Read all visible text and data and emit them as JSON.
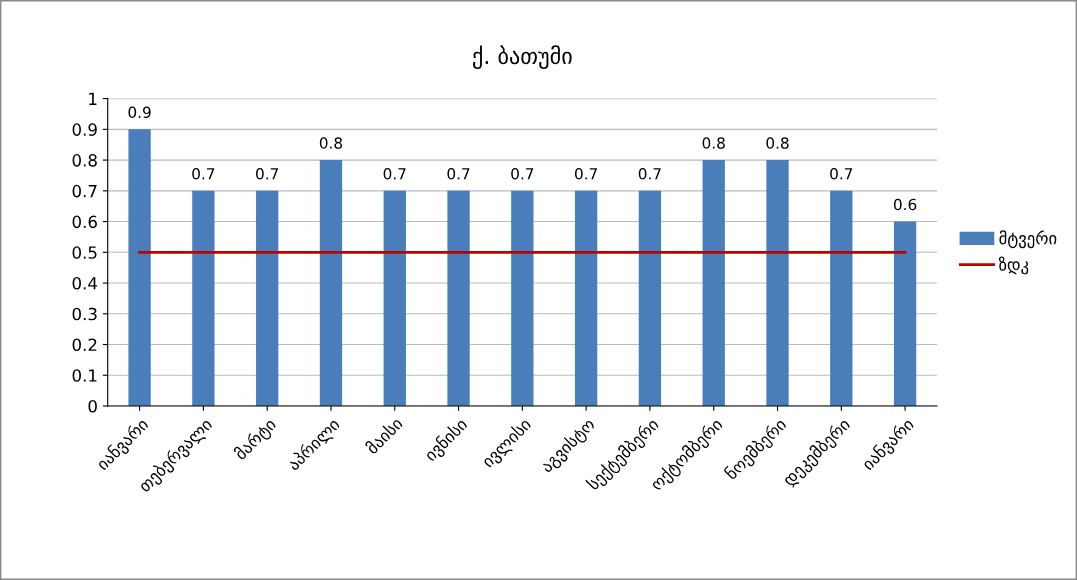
{
  "chart_data": {
    "type": "bar",
    "title": "ქ. ბათუმი",
    "categories": [
      "იანვარი",
      "თებერვალი",
      "მარტი",
      "აპრილი",
      "მაისი",
      "ივნისი",
      "ივლისი",
      "აგვისტო",
      "სექტემბერი",
      "ოქტომბერი",
      "ნოემბერი",
      "დეკემბერი",
      "იანვარი"
    ],
    "series": [
      {
        "name": "მტვერი",
        "color": "#4a7ebb",
        "values": [
          0.9,
          0.7,
          0.7,
          0.8,
          0.7,
          0.7,
          0.7,
          0.7,
          0.7,
          0.8,
          0.8,
          0.7,
          0.6
        ],
        "value_labels": [
          "0.9",
          "0.7",
          "0.7",
          "0.8",
          "0.7",
          "0.7",
          "0.7",
          "0.7",
          "0.7",
          "0.8",
          "0.8",
          "0.7",
          "0.6"
        ]
      },
      {
        "name": "ზდკ",
        "type": "line",
        "line_style": "solid",
        "color": "#c00000",
        "values": [
          0.5,
          0.5,
          0.5,
          0.5,
          0.5,
          0.5,
          0.5,
          0.5,
          0.5,
          0.5,
          0.5,
          0.5,
          0.5
        ]
      }
    ],
    "ylim": [
      0,
      1
    ],
    "yticks": [
      0,
      0.1,
      0.2,
      0.3,
      0.4,
      0.5,
      0.6,
      0.7,
      0.8,
      0.9,
      1
    ],
    "grid": "y",
    "legend": "right"
  }
}
